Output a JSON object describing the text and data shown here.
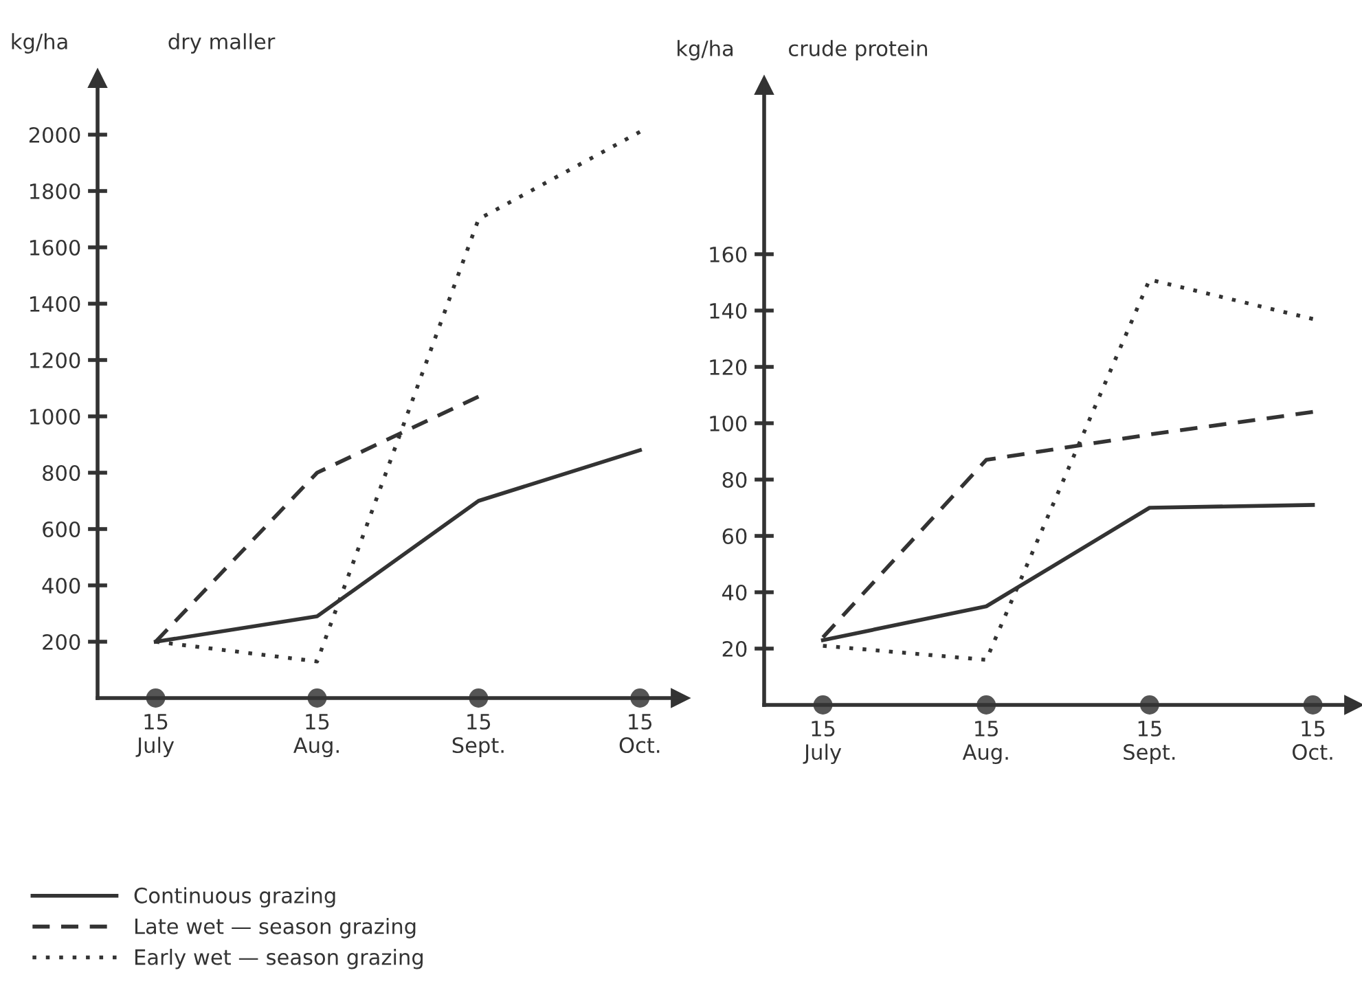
{
  "chart_data": [
    {
      "type": "line",
      "title": "dry maller",
      "ylabel": "kg/ha",
      "categories": [
        "15\nJuly",
        "15\nAug.",
        "15\nSept.",
        "15\nOct."
      ],
      "ylim": [
        0,
        2200
      ],
      "yticks": [
        200,
        400,
        600,
        800,
        1000,
        1200,
        1400,
        1600,
        1800,
        2000
      ],
      "grid": false,
      "legend": "bottom left",
      "marker": "none",
      "series": [
        {
          "name": "Continuous grazing",
          "color": "#333333",
          "line_style": "solid",
          "values": [
            200,
            290,
            700,
            880
          ]
        },
        {
          "name": "Late wet — season grazing",
          "color": "#333333",
          "line_style": "dashed",
          "values": [
            200,
            800,
            1070,
            null
          ]
        },
        {
          "name": "Early wet — season grazing",
          "color": "#333333",
          "line_style": "dotted",
          "values": [
            200,
            130,
            1700,
            2010
          ]
        }
      ]
    },
    {
      "type": "line",
      "title": "crude protein",
      "ylabel": "kg/ha",
      "categories": [
        "15\nJuly",
        "15\nAug.",
        "15\nSept.",
        "15\nOct."
      ],
      "ylim": [
        0,
        220
      ],
      "yticks": [
        20,
        40,
        60,
        80,
        100,
        120,
        140,
        160
      ],
      "grid": false,
      "marker": "none",
      "series": [
        {
          "color": "#333333",
          "line_style": "solid",
          "values": [
            23,
            35,
            70,
            71
          ]
        },
        {
          "color": "#333333",
          "line_style": "dashed",
          "values": [
            24,
            87,
            96,
            104
          ]
        },
        {
          "color": "#333333",
          "line_style": "dotted",
          "values": [
            21,
            16,
            151,
            137
          ]
        }
      ]
    }
  ]
}
